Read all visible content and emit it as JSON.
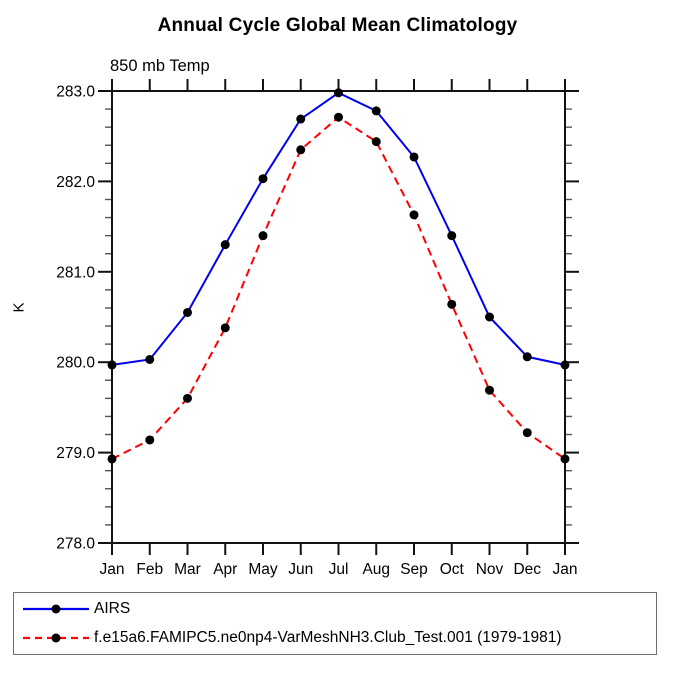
{
  "page": {
    "title": "Annual Cycle Global Mean Climatology",
    "subtitle": "850 mb Temp",
    "y_axis_label": "K"
  },
  "colors": {
    "axis": "#111111",
    "minor_tick": "#555555",
    "marker": "#000000",
    "airs_blue": "#0000ee",
    "model_red": "#ff0000"
  },
  "legend": {
    "entries": [
      {
        "label": "AIRS",
        "color": "#0000ee",
        "dash": "solid",
        "marker": "dot-icon"
      },
      {
        "label": "f.e15a6.FAMIPC5.ne0np4-VarMeshNH3.Club_Test.001 (1979-1981)",
        "color": "#ff0000",
        "dash": "dashed",
        "marker": "dot-icon"
      }
    ]
  },
  "chart_data": {
    "type": "line",
    "title": "Annual Cycle Global Mean Climatology",
    "subtitle": "850 mb Temp",
    "xlabel": "",
    "ylabel": "K",
    "categories": [
      "Jan",
      "Feb",
      "Mar",
      "Apr",
      "May",
      "Jun",
      "Jul",
      "Aug",
      "Sep",
      "Oct",
      "Nov",
      "Dec",
      "Jan"
    ],
    "series": [
      {
        "name": "AIRS",
        "color": "#0000ee",
        "dash": "solid",
        "marker": "filled-black-circle",
        "values": [
          279.97,
          280.03,
          280.55,
          281.3,
          282.03,
          282.69,
          282.98,
          282.78,
          282.27,
          281.4,
          280.5,
          280.06,
          279.97
        ]
      },
      {
        "name": "f.e15a6.FAMIPC5.ne0np4-VarMeshNH3.Club_Test.001 (1979-1981)",
        "color": "#ff0000",
        "dash": "dashed",
        "marker": "filled-black-circle",
        "values": [
          278.93,
          279.14,
          279.6,
          280.38,
          281.4,
          282.35,
          282.71,
          282.44,
          281.63,
          280.64,
          279.69,
          279.22,
          278.93
        ]
      }
    ],
    "ylim": [
      278.0,
      283.0
    ],
    "ytick_interval": 1.0,
    "yminor_step": 0.2,
    "ytick_format_decimals": 1,
    "grid": false,
    "axes_frame": "box-with-mirrored-ticks",
    "legend_position": "bottom-left-box"
  }
}
